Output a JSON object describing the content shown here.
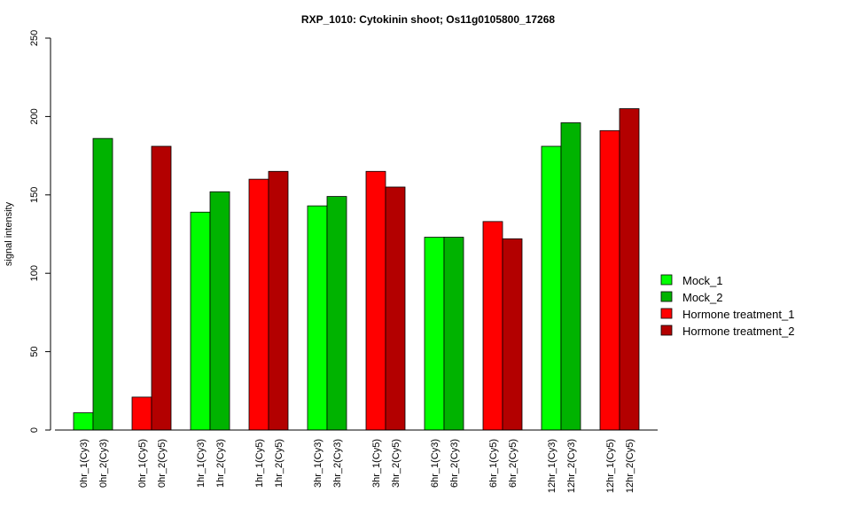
{
  "chart_data": {
    "type": "bar",
    "title": "RXP_1010: Cytokinin shoot; Os11g0105800_17268",
    "xlabel": "",
    "ylabel": "signal intensity",
    "ylim": [
      0,
      250
    ],
    "yticks": [
      0,
      50,
      100,
      150,
      200,
      250
    ],
    "grid": false,
    "legend_position": "right",
    "legend": [
      {
        "name": "Mock_1",
        "color": "#00ff00"
      },
      {
        "name": "Mock_2",
        "color": "#00b300"
      },
      {
        "name": "Hormone treatment_1",
        "color": "#ff0000"
      },
      {
        "name": "Hormone treatment_2",
        "color": "#b30000"
      }
    ],
    "bars": [
      {
        "label": "0hr_1(Cy3)",
        "value": 11,
        "color": "#00ff00"
      },
      {
        "label": "0hr_2(Cy3)",
        "value": 186,
        "color": "#00b300"
      },
      {
        "label": "0hr_1(Cy5)",
        "value": 21,
        "color": "#ff0000"
      },
      {
        "label": "0hr_2(Cy5)",
        "value": 181,
        "color": "#b30000"
      },
      {
        "label": "1hr_1(Cy3)",
        "value": 139,
        "color": "#00ff00"
      },
      {
        "label": "1hr_2(Cy3)",
        "value": 152,
        "color": "#00b300"
      },
      {
        "label": "1hr_1(Cy5)",
        "value": 160,
        "color": "#ff0000"
      },
      {
        "label": "1hr_2(Cy5)",
        "value": 165,
        "color": "#b30000"
      },
      {
        "label": "3hr_1(Cy3)",
        "value": 143,
        "color": "#00ff00"
      },
      {
        "label": "3hr_2(Cy3)",
        "value": 149,
        "color": "#00b300"
      },
      {
        "label": "3hr_1(Cy5)",
        "value": 165,
        "color": "#ff0000"
      },
      {
        "label": "3hr_2(Cy5)",
        "value": 155,
        "color": "#b30000"
      },
      {
        "label": "6hr_1(Cy3)",
        "value": 123,
        "color": "#00ff00"
      },
      {
        "label": "6hr_2(Cy3)",
        "value": 123,
        "color": "#00b300"
      },
      {
        "label": "6hr_1(Cy5)",
        "value": 133,
        "color": "#ff0000"
      },
      {
        "label": "6hr_2(Cy5)",
        "value": 122,
        "color": "#b30000"
      },
      {
        "label": "12hr_1(Cy3)",
        "value": 181,
        "color": "#00ff00"
      },
      {
        "label": "12hr_2(Cy3)",
        "value": 196,
        "color": "#00b300"
      },
      {
        "label": "12hr_1(Cy5)",
        "value": 191,
        "color": "#ff0000"
      },
      {
        "label": "12hr_2(Cy5)",
        "value": 205,
        "color": "#b30000"
      }
    ]
  }
}
